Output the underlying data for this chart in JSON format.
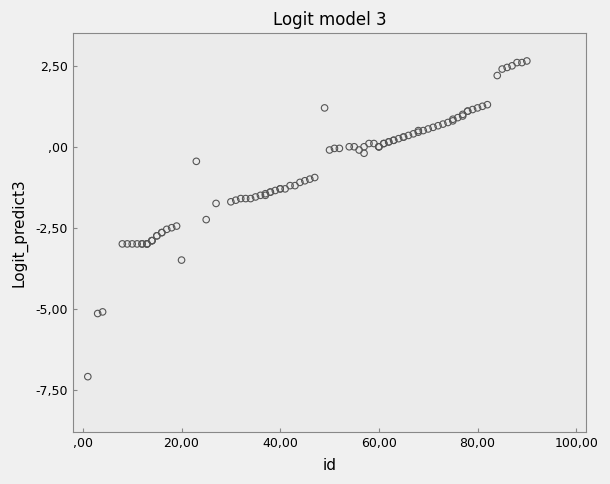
{
  "title": "Logit model 3",
  "xlabel": "id",
  "ylabel": "Logit_predict3",
  "xlim": [
    -2,
    102
  ],
  "ylim": [
    -8.8,
    3.5
  ],
  "xticks": [
    0,
    20,
    40,
    60,
    80,
    100
  ],
  "yticks": [
    -7.5,
    -5.0,
    -2.5,
    0.0,
    2.5
  ],
  "xtick_labels": [
    ",00",
    "20,00",
    "40,00",
    "60,00",
    "80,00",
    "100,00"
  ],
  "ytick_labels": [
    "-7,50",
    "-5,00",
    "-2,50",
    ",00",
    "2,50"
  ],
  "fig_facecolor": "#f0f0f0",
  "ax_facecolor": "#ebebeb",
  "spine_color": "#888888",
  "marker_facecolor": "none",
  "marker_edgecolor": "#555555",
  "title_fontsize": 12,
  "label_fontsize": 11,
  "tick_fontsize": 9,
  "x": [
    1,
    3,
    4,
    8,
    9,
    10,
    11,
    12,
    12,
    13,
    13,
    13,
    14,
    14,
    14,
    15,
    15,
    16,
    16,
    17,
    18,
    19,
    20,
    23,
    25,
    27,
    30,
    31,
    32,
    33,
    34,
    35,
    36,
    37,
    37,
    38,
    38,
    39,
    40,
    40,
    41,
    42,
    43,
    44,
    45,
    46,
    47,
    49,
    50,
    51,
    52,
    54,
    55,
    56,
    57,
    57,
    58,
    59,
    60,
    60,
    60,
    61,
    61,
    62,
    62,
    63,
    63,
    64,
    65,
    65,
    66,
    67,
    68,
    68,
    69,
    70,
    71,
    72,
    73,
    74,
    75,
    75,
    76,
    77,
    77,
    78,
    78,
    79,
    80,
    81,
    82,
    84,
    85,
    86,
    87,
    88,
    89,
    90
  ],
  "y": [
    -7.1,
    -5.15,
    -5.1,
    -3.0,
    -3.0,
    -3.0,
    -3.0,
    -3.0,
    -3.0,
    -3.0,
    -3.0,
    -3.0,
    -2.9,
    -2.9,
    -2.9,
    -2.75,
    -2.75,
    -2.65,
    -2.65,
    -2.55,
    -2.5,
    -2.45,
    -3.5,
    -0.45,
    -2.25,
    -1.75,
    -1.7,
    -1.65,
    -1.6,
    -1.6,
    -1.6,
    -1.55,
    -1.5,
    -1.5,
    -1.45,
    -1.4,
    -1.4,
    -1.35,
    -1.3,
    -1.3,
    -1.3,
    -1.2,
    -1.2,
    -1.1,
    -1.05,
    -1.0,
    -0.95,
    1.2,
    -0.1,
    -0.05,
    -0.05,
    0.0,
    0.0,
    -0.1,
    -0.2,
    0.0,
    0.1,
    0.1,
    0.0,
    0.0,
    0.0,
    0.1,
    0.1,
    0.15,
    0.15,
    0.2,
    0.2,
    0.25,
    0.3,
    0.3,
    0.35,
    0.4,
    0.45,
    0.5,
    0.5,
    0.55,
    0.6,
    0.65,
    0.7,
    0.75,
    0.8,
    0.85,
    0.9,
    0.95,
    1.0,
    1.1,
    1.1,
    1.15,
    1.2,
    1.25,
    1.3,
    2.2,
    2.4,
    2.45,
    2.5,
    2.6,
    2.6,
    2.65
  ]
}
